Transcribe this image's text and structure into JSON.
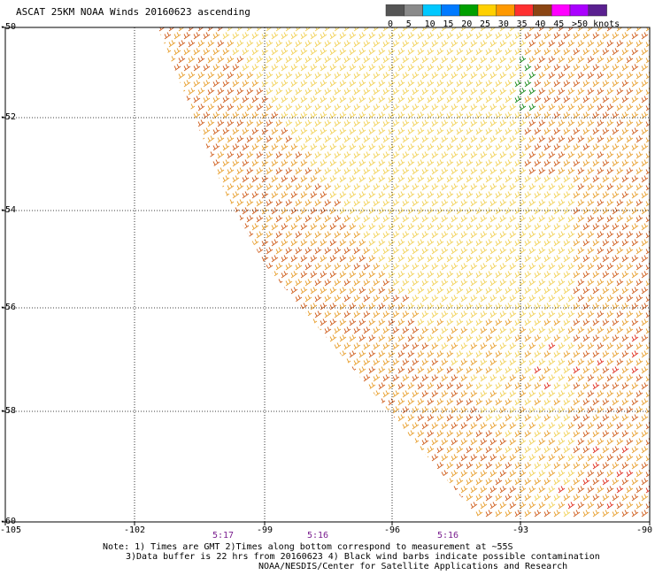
{
  "title": "ASCAT 25KM NOAA Winds 20160623 ascending",
  "legend": {
    "unit_label": ">50 knots",
    "labels": [
      "0",
      "5",
      "10",
      "15",
      "20",
      "25",
      "30",
      "35",
      "40",
      "45"
    ],
    "colors": [
      "#555555",
      "#8a8a8a",
      "#00c8ff",
      "#007aff",
      "#00a000",
      "#ffd000",
      "#ff9900",
      "#ff3030",
      "#8b4513",
      "#ff00ff",
      "#aa00ff",
      "#5a2090"
    ]
  },
  "axes": {
    "lat_labels": [
      "-50",
      "-52",
      "-54",
      "-56",
      "-58",
      "-60"
    ],
    "lon_labels": [
      "-105",
      "-102",
      "-99",
      "-96",
      "-93",
      "-90"
    ]
  },
  "times": [
    "5:17",
    "5:16",
    "5:16"
  ],
  "notes": {
    "line1": "Note: 1) Times are GMT 2)Times along bottom correspond to measurement at ~55S",
    "line2": "3)Data buffer is 22 hrs from 20160623 4) Black wind barbs indicate possible contamination",
    "line3": "NOAA/NESDIS/Center for Satellite Applications and Research"
  },
  "wind_colors": {
    "light": "#f2d25a",
    "medium": "#e8a030",
    "strong": "#d06020",
    "red": "#e03020",
    "green": "#1a8a1a"
  }
}
